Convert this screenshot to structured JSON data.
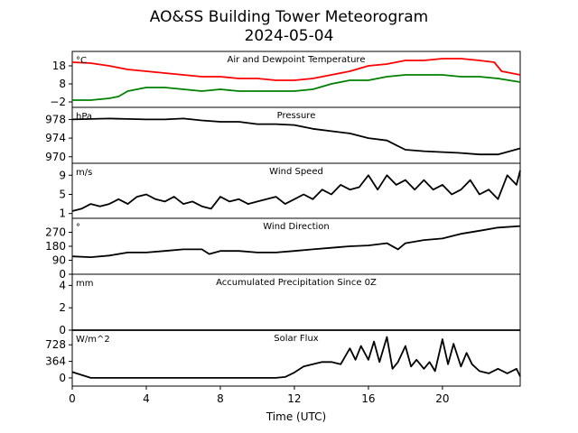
{
  "figure": {
    "title_line1": "AO&SS Building Tower Meteorogram",
    "title_line2": "2024-05-04",
    "xlabel": "Time (UTC)",
    "x_ticks": [
      "0",
      "4",
      "8",
      "12",
      "16",
      "20"
    ],
    "x_tick_values": [
      0,
      4,
      8,
      12,
      16,
      20
    ]
  },
  "chart_data": [
    {
      "type": "line",
      "title": "Air and Dewpoint Temperature",
      "unit": "°C",
      "xlim": [
        0,
        24.2
      ],
      "ylim": [
        -5,
        26
      ],
      "yticks": [
        -2,
        8,
        18
      ],
      "ytick_labels": [
        "−2",
        "8",
        "18"
      ],
      "series": [
        {
          "color": "#ff0000",
          "x": [
            0,
            1,
            2,
            3,
            4,
            5,
            6,
            7,
            8,
            9,
            10,
            11,
            12,
            13,
            14,
            15,
            16,
            17,
            18,
            19,
            20,
            21,
            22,
            22.8,
            23.2,
            24.2
          ],
          "y": [
            20,
            19.5,
            18,
            16,
            15,
            14,
            13,
            12,
            12,
            11,
            11,
            10,
            10,
            11,
            13,
            15,
            18,
            19,
            21,
            21,
            22,
            22,
            21,
            20,
            15,
            13
          ]
        },
        {
          "color": "#008000",
          "x": [
            0,
            1,
            2,
            2.5,
            3,
            3.5,
            4,
            5,
            6,
            7,
            8,
            9,
            10,
            11,
            12,
            13,
            14,
            15,
            16,
            17,
            18,
            19,
            20,
            21,
            22,
            23,
            24.2
          ],
          "y": [
            -1,
            -1,
            0,
            1,
            4,
            5,
            6,
            6,
            5,
            4,
            5,
            4,
            4,
            4,
            4,
            5,
            8,
            10,
            10,
            12,
            13,
            13,
            13,
            12,
            12,
            11,
            9
          ]
        }
      ]
    },
    {
      "type": "line",
      "title": "Pressure",
      "unit": "hPa",
      "xlim": [
        0,
        24.2
      ],
      "ylim": [
        968.6,
        980.6
      ],
      "yticks": [
        970,
        974,
        978
      ],
      "ytick_labels": [
        "970",
        "974",
        "978"
      ],
      "series": [
        {
          "color": "#000000",
          "x": [
            0,
            1,
            2,
            3,
            4,
            5,
            6,
            7,
            8,
            9,
            10,
            11,
            12,
            13,
            14,
            15,
            16,
            17,
            17.5,
            18,
            19,
            20,
            21,
            22,
            23,
            24.2
          ],
          "y": [
            978,
            978.1,
            978.2,
            978.1,
            978,
            978,
            978.2,
            977.8,
            977.5,
            977.5,
            977,
            977,
            976.8,
            976,
            975.5,
            975,
            974,
            973.5,
            972.5,
            971.5,
            971.2,
            971,
            970.8,
            970.5,
            970.5,
            971.8
          ]
        }
      ]
    },
    {
      "type": "line",
      "title": "Wind Speed",
      "unit": "m/s",
      "xlim": [
        0,
        24.2
      ],
      "ylim": [
        0,
        11.5
      ],
      "yticks": [
        1,
        5,
        9
      ],
      "ytick_labels": [
        "1",
        "5",
        "9"
      ],
      "series": [
        {
          "color": "#000000",
          "x": [
            0,
            0.5,
            1,
            1.5,
            2,
            2.5,
            3,
            3.5,
            4,
            4.5,
            5,
            5.5,
            6,
            6.5,
            7,
            7.5,
            8,
            8.5,
            9,
            9.5,
            10,
            10.5,
            11,
            11.5,
            12,
            12.5,
            13,
            13.5,
            14,
            14.5,
            15,
            15.5,
            16,
            16.5,
            17,
            17.5,
            18,
            18.5,
            19,
            19.5,
            20,
            20.5,
            21,
            21.5,
            22,
            22.5,
            23,
            23.5,
            24,
            24.2
          ],
          "y": [
            1.5,
            2,
            3,
            2.5,
            3,
            4,
            3,
            4.5,
            5,
            4,
            3.5,
            4.5,
            3,
            3.5,
            2.5,
            2,
            4.5,
            3.5,
            4,
            3,
            3.5,
            4,
            4.5,
            3,
            4,
            5,
            4,
            6,
            5,
            7,
            6,
            6.5,
            9,
            6,
            9,
            7,
            8,
            6,
            8,
            6,
            7,
            5,
            6,
            8,
            5,
            6,
            4,
            9,
            7,
            10
          ]
        }
      ]
    },
    {
      "type": "line",
      "title": "Wind Direction",
      "unit": "°",
      "xlim": [
        0,
        24.2
      ],
      "ylim": [
        0,
        360
      ],
      "yticks": [
        0,
        90,
        180,
        270
      ],
      "ytick_labels": [
        "0",
        "90",
        "180",
        "270"
      ],
      "series": [
        {
          "color": "#000000",
          "x": [
            0,
            1,
            2,
            3,
            4,
            5,
            6,
            7,
            7.4,
            8,
            9,
            10,
            11,
            12,
            13,
            14,
            15,
            16,
            17,
            17.6,
            18,
            19,
            20,
            21,
            22,
            23,
            24.2
          ],
          "y": [
            115,
            110,
            120,
            140,
            140,
            150,
            160,
            160,
            130,
            150,
            150,
            140,
            140,
            150,
            160,
            170,
            180,
            185,
            200,
            160,
            200,
            220,
            230,
            260,
            280,
            300,
            310
          ]
        }
      ]
    },
    {
      "type": "line",
      "title": "Accumulated Precipitation Since 0Z",
      "unit": "mm",
      "xlim": [
        0,
        24.2
      ],
      "ylim": [
        0,
        5
      ],
      "yticks": [
        0,
        2,
        4
      ],
      "ytick_labels": [
        "0",
        "2",
        "4"
      ],
      "series": [
        {
          "color": "#000000",
          "x": [
            0,
            24.2
          ],
          "y": [
            0,
            0
          ]
        }
      ]
    },
    {
      "type": "line",
      "title": "Solar Flux",
      "unit": "W/m^2",
      "xlim": [
        0,
        24.2
      ],
      "ylim": [
        -180,
        1050
      ],
      "yticks": [
        0,
        364,
        728
      ],
      "ytick_labels": [
        "0",
        "364",
        "728"
      ],
      "series": [
        {
          "color": "#000000",
          "x": [
            0,
            1,
            2,
            4,
            6,
            8,
            10,
            11,
            11.5,
            12,
            12.5,
            13,
            13.5,
            14,
            14.5,
            15,
            15.3,
            15.6,
            16,
            16.3,
            16.6,
            17,
            17.3,
            17.6,
            18,
            18.3,
            18.6,
            19,
            19.3,
            19.6,
            20,
            20.3,
            20.6,
            21,
            21.3,
            21.6,
            22,
            22.5,
            23,
            23.5,
            24,
            24.2
          ],
          "y": [
            130,
            0,
            0,
            0,
            0,
            0,
            0,
            0,
            20,
            120,
            250,
            300,
            350,
            350,
            300,
            650,
            400,
            700,
            400,
            800,
            350,
            900,
            200,
            350,
            700,
            250,
            400,
            200,
            350,
            150,
            850,
            300,
            750,
            250,
            550,
            300,
            150,
            100,
            200,
            100,
            200,
            30
          ]
        }
      ]
    }
  ]
}
